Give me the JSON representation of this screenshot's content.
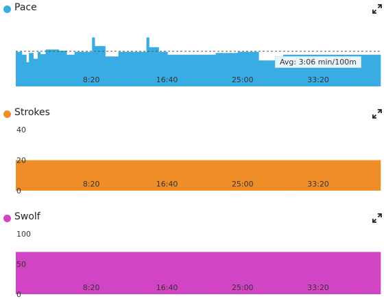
{
  "panels": [
    {
      "title": "Pace",
      "color": "#38ace3",
      "expand_icon": "expand-arrows-icon",
      "avg_label": "Avg: 3:06 min/100m"
    },
    {
      "title": "Strokes",
      "color": "#ef8e26",
      "expand_icon": "expand-arrows-icon"
    },
    {
      "title": "Swolf",
      "color": "#d145c4",
      "expand_icon": "expand-arrows-icon"
    }
  ],
  "chart_data": [
    {
      "type": "bar",
      "title": "Pace",
      "x_tick_labels": [
        "8:20",
        "16:40",
        "25:00",
        "33:20"
      ],
      "x_ticks_minutes": [
        8.33,
        16.67,
        25.0,
        33.33
      ],
      "x_range_minutes": [
        0,
        40.2
      ],
      "y_tick_labels": [],
      "y_range": [
        0,
        100
      ],
      "reference_line": {
        "label": "Avg: 3:06 min/100m",
        "value": 61
      },
      "values": [
        60,
        60,
        60,
        60,
        60,
        60,
        60,
        55,
        55,
        55,
        55,
        55,
        42,
        42,
        42,
        58,
        58,
        58,
        58,
        58,
        48,
        48,
        48,
        48,
        48,
        60,
        60,
        60,
        56,
        56,
        56,
        56,
        56,
        56,
        64,
        64,
        64,
        64,
        64,
        64,
        64,
        64,
        64,
        64,
        64,
        64,
        64,
        64,
        64,
        62,
        62,
        62,
        62,
        62,
        62,
        62,
        62,
        62,
        55,
        55,
        55,
        55,
        55,
        55,
        55,
        55,
        55,
        60,
        60,
        60,
        60,
        60,
        60,
        60,
        60,
        60,
        60,
        60,
        60,
        60,
        60,
        60,
        60,
        60,
        60,
        60,
        60,
        85,
        85,
        85,
        70,
        70,
        70,
        70,
        70,
        70,
        70,
        70,
        70,
        70,
        70,
        70,
        52,
        52,
        52,
        52,
        52,
        52,
        52,
        52,
        52,
        52,
        52,
        52,
        52,
        52,
        52,
        60,
        60,
        60,
        60,
        60,
        60,
        60,
        60,
        60,
        60,
        60,
        60,
        60,
        60,
        60,
        60,
        60,
        60,
        60,
        60,
        60,
        60,
        60,
        60,
        60,
        60,
        60,
        60,
        60,
        60,
        60,
        60,
        85,
        85,
        85,
        68,
        68,
        68,
        68,
        68,
        68,
        68,
        68,
        68,
        68,
        68,
        60,
        60,
        60,
        60,
        60,
        60,
        60,
        60,
        60,
        60,
        55,
        55,
        55,
        55,
        55,
        55,
        55,
        55,
        55,
        55,
        55,
        55,
        55,
        55,
        55,
        55,
        55,
        55,
        55,
        55,
        55,
        55,
        55,
        55,
        55,
        55,
        55,
        55,
        55,
        55,
        55,
        55,
        55,
        55,
        55,
        55,
        55,
        55,
        55,
        55,
        55,
        55,
        55,
        55,
        55,
        55,
        55,
        55,
        55,
        55,
        55,
        55,
        55,
        55,
        55,
        58,
        58,
        58,
        58,
        58,
        58,
        58,
        58,
        58,
        58,
        58,
        58,
        58,
        58,
        58,
        58,
        58,
        58,
        58,
        58,
        58,
        58,
        58,
        58,
        58,
        60,
        60,
        60,
        60,
        60,
        60,
        60,
        60,
        60,
        60,
        60,
        60,
        60,
        60,
        60,
        60,
        60,
        60,
        60,
        60,
        60,
        60,
        60,
        60,
        45,
        45,
        45,
        45,
        45,
        45,
        45,
        45,
        45,
        45,
        45,
        45,
        45,
        45,
        45,
        45,
        45,
        45,
        45,
        45,
        45,
        45,
        45,
        45,
        45,
        45,
        45,
        45,
        55,
        55,
        55,
        55,
        55,
        55,
        55,
        55,
        55,
        55,
        55,
        55,
        55,
        55,
        55,
        55,
        55,
        55,
        55,
        55,
        55,
        55,
        55,
        55,
        55,
        55,
        55,
        55,
        55,
        55,
        55,
        55,
        55,
        55,
        55,
        55,
        55,
        55,
        55,
        55,
        55,
        55,
        55,
        55,
        55,
        55,
        55,
        55,
        55,
        55,
        55,
        55,
        55,
        55,
        55,
        55,
        55,
        55,
        55,
        55,
        55,
        55,
        55,
        55,
        55,
        55,
        55,
        55,
        55,
        55,
        55,
        55,
        55,
        55,
        55,
        55,
        55,
        55,
        55,
        55,
        55,
        55,
        55,
        55,
        55,
        55,
        55,
        55,
        55,
        55,
        55,
        55,
        55,
        55,
        55,
        55,
        55,
        55,
        55,
        55,
        55,
        55,
        55,
        55,
        55,
        55,
        55,
        55,
        55,
        55,
        55
      ]
    },
    {
      "type": "bar",
      "title": "Strokes",
      "x_tick_labels": [
        "8:20",
        "16:40",
        "25:00",
        "33:20"
      ],
      "x_ticks_minutes": [
        8.33,
        16.67,
        25.0,
        33.33
      ],
      "x_range_minutes": [
        0,
        40.2
      ],
      "y_tick_labels": [
        "40",
        "20",
        "0"
      ],
      "y_range": [
        0,
        40
      ],
      "values": [
        20,
        20,
        20,
        20,
        20,
        20,
        20,
        20,
        20,
        20,
        20,
        20,
        20,
        20,
        20,
        20,
        20,
        20,
        20,
        20,
        20,
        20,
        20,
        20,
        20,
        20,
        20,
        20,
        20,
        20,
        20,
        20,
        20,
        20,
        20,
        20,
        20,
        20,
        20,
        20,
        20,
        20,
        20,
        20,
        20,
        20,
        20,
        20,
        20,
        20,
        20,
        20,
        20,
        20,
        20,
        20,
        20,
        20,
        20,
        20,
        20,
        20,
        20,
        20,
        20,
        20,
        20,
        20,
        20,
        20,
        20,
        20,
        20,
        20,
        20,
        20,
        20,
        20,
        20,
        20,
        20,
        20,
        20,
        20,
        20,
        20,
        20,
        20,
        20,
        20,
        20,
        20,
        20,
        20,
        20,
        20,
        20,
        20,
        20,
        20,
        20,
        20,
        20,
        20,
        20,
        20,
        20,
        20,
        20,
        20,
        20,
        20,
        20,
        20,
        20,
        20,
        20,
        20,
        20,
        20,
        20,
        20,
        20,
        20,
        20,
        20,
        20,
        20,
        20,
        20,
        20,
        20,
        20,
        20,
        20,
        20,
        20,
        20,
        20,
        20,
        20,
        20,
        20,
        20,
        20,
        20,
        20,
        20,
        20,
        20,
        20,
        20,
        20,
        20,
        20,
        20,
        20,
        20,
        20,
        20,
        20,
        20,
        20,
        20,
        20,
        20,
        20,
        20,
        20,
        20,
        20,
        20,
        20,
        20,
        20,
        20,
        20,
        20,
        20,
        20,
        20,
        20,
        20,
        20,
        20,
        20,
        20,
        20,
        20,
        20,
        20,
        20,
        20,
        20,
        20,
        20,
        20,
        20,
        20,
        20,
        20,
        20,
        20,
        20,
        20,
        20,
        20,
        20,
        20,
        20,
        20,
        20,
        20,
        20,
        20,
        20,
        20,
        20,
        20,
        20,
        20,
        20,
        20,
        20,
        20,
        20,
        20,
        20,
        20,
        20,
        20,
        20,
        20,
        20,
        20,
        20,
        20,
        20,
        20,
        20,
        20,
        20,
        20,
        20,
        20,
        20,
        20,
        20,
        20,
        20,
        20,
        20,
        20,
        20,
        20,
        20,
        20,
        20,
        20,
        20,
        20,
        20,
        20,
        20,
        20,
        20,
        20,
        20,
        20,
        20,
        20,
        20,
        20,
        20,
        20,
        20,
        20,
        20,
        20,
        20,
        20,
        20,
        20,
        20,
        20,
        20,
        20,
        20,
        20,
        20,
        20,
        20,
        20,
        20,
        20,
        20,
        20,
        20,
        20,
        20,
        20,
        20,
        20,
        20,
        20,
        20,
        20,
        20,
        20,
        20,
        20,
        20,
        20,
        20,
        20,
        20,
        20,
        20,
        20,
        20,
        20,
        20,
        20,
        20,
        20,
        20,
        20,
        20,
        20,
        20,
        20,
        20,
        20,
        20,
        20,
        20,
        20,
        20,
        20,
        20,
        20,
        20,
        20,
        20,
        20,
        20,
        20,
        20,
        20,
        20,
        20,
        20,
        20,
        20,
        20,
        20,
        20,
        20,
        20,
        20,
        20,
        20,
        20,
        20,
        20,
        20,
        20,
        20,
        20,
        20,
        20,
        20,
        20,
        20,
        20,
        20,
        20,
        20,
        20,
        20,
        20,
        20,
        20,
        20,
        20,
        20,
        20,
        20,
        20,
        20,
        20,
        20,
        20,
        20,
        20,
        20,
        20,
        20,
        20,
        20,
        20,
        20,
        20,
        20,
        20,
        20,
        20,
        20,
        20,
        20,
        20,
        20,
        20,
        20,
        20,
        20,
        20,
        20,
        20,
        20,
        20,
        20,
        20,
        20,
        20,
        20,
        20,
        20,
        20,
        20,
        20,
        20,
        20,
        20,
        20,
        20,
        20,
        20,
        20,
        20,
        20,
        20,
        20,
        20,
        20,
        20,
        20,
        20
      ]
    },
    {
      "type": "bar",
      "title": "Swolf",
      "x_tick_labels": [
        "8:20",
        "16:40",
        "25:00",
        "33:20"
      ],
      "x_ticks_minutes": [
        8.33,
        16.67,
        25.0,
        33.33
      ],
      "x_range_minutes": [
        0,
        40.2
      ],
      "y_tick_labels": [
        "100",
        "50",
        "0"
      ],
      "y_range": [
        0,
        100
      ],
      "values": [
        70,
        70,
        70,
        70,
        70,
        70,
        70,
        70,
        70,
        70,
        70,
        70,
        70,
        70,
        70,
        70,
        70,
        70,
        70,
        70,
        70,
        70,
        70,
        70,
        70,
        70,
        70,
        70,
        70,
        70,
        70,
        70,
        70,
        70,
        70,
        70,
        70,
        70,
        70,
        70,
        70,
        70,
        70,
        70,
        70,
        70,
        70,
        70,
        70,
        70,
        70,
        70,
        70,
        70,
        70,
        70,
        70,
        70,
        70,
        70,
        70,
        70,
        70,
        70,
        70,
        70,
        70,
        70,
        70,
        70,
        70,
        70,
        70,
        70,
        70,
        70,
        70,
        70,
        70,
        70,
        70,
        70,
        70,
        70,
        70,
        70,
        70,
        70,
        70,
        70,
        70,
        70,
        70,
        70,
        70,
        70,
        70,
        70,
        70,
        70,
        70,
        70,
        70,
        70,
        70,
        70,
        70,
        70,
        70,
        70,
        70,
        70,
        70,
        70,
        70,
        70,
        70,
        70,
        70,
        70,
        70,
        70,
        70,
        70,
        70,
        70,
        70,
        70,
        70,
        70,
        70,
        70,
        70,
        70,
        70,
        70,
        70,
        70,
        70,
        70,
        70,
        70,
        70,
        70,
        70,
        70,
        70,
        70,
        70,
        70,
        70,
        70,
        70,
        70,
        70,
        70,
        70,
        70,
        70,
        70,
        70,
        70,
        70,
        70,
        70,
        70,
        70,
        70,
        70,
        70,
        70,
        70,
        70,
        70,
        70,
        70,
        70,
        70,
        70,
        70,
        70,
        70,
        70,
        70,
        70,
        70,
        70,
        70,
        70,
        70,
        70,
        70,
        70,
        70,
        70,
        70,
        70,
        70,
        70,
        70,
        70,
        70,
        70,
        70,
        70,
        70,
        70,
        70,
        70,
        70,
        70,
        70,
        70,
        70,
        70,
        70,
        70,
        70,
        70,
        70,
        70,
        70,
        70,
        70,
        70,
        70,
        70,
        70,
        70,
        70,
        70,
        70,
        70,
        70,
        70,
        70,
        70,
        70,
        70,
        70,
        70,
        70,
        70,
        70,
        70,
        70,
        70,
        70,
        70,
        70,
        70,
        70,
        70,
        70,
        70,
        70,
        70,
        70,
        70,
        70,
        70,
        70,
        70,
        70,
        70,
        70,
        70,
        70,
        70,
        70,
        70,
        70,
        70,
        70,
        70,
        70,
        70,
        70,
        70,
        70,
        70,
        70,
        70,
        70,
        70,
        70,
        70,
        70,
        70,
        70,
        70,
        70,
        70,
        70,
        70,
        70,
        70,
        70,
        70,
        70,
        70,
        70,
        70,
        70,
        70,
        70,
        70,
        70,
        70,
        70,
        70,
        70,
        70,
        70,
        70,
        70,
        70,
        70,
        70,
        70,
        70,
        70,
        70,
        70,
        70,
        70,
        70,
        70,
        70,
        70,
        70,
        70,
        70,
        70,
        70,
        70,
        70,
        70,
        70,
        70,
        70,
        70,
        70,
        70,
        70,
        70,
        70,
        70,
        70,
        70,
        70,
        70,
        70,
        70,
        70,
        70,
        70,
        70,
        70,
        70,
        70,
        70,
        70,
        70,
        70,
        70,
        70,
        70,
        70,
        70,
        70,
        70,
        70,
        70,
        70,
        70,
        70,
        70,
        70,
        70,
        70,
        70,
        70,
        70,
        70,
        70,
        70,
        70,
        70,
        70,
        70,
        70,
        70,
        70,
        70,
        70,
        70,
        70,
        70,
        70,
        70,
        70,
        70,
        70,
        70,
        70,
        70,
        70,
        70,
        70,
        70,
        70,
        70,
        70,
        70,
        70,
        70,
        70,
        70,
        70,
        70,
        70,
        70,
        70,
        70,
        70,
        70,
        70,
        70,
        70,
        70,
        70,
        70,
        70,
        70
      ]
    }
  ]
}
